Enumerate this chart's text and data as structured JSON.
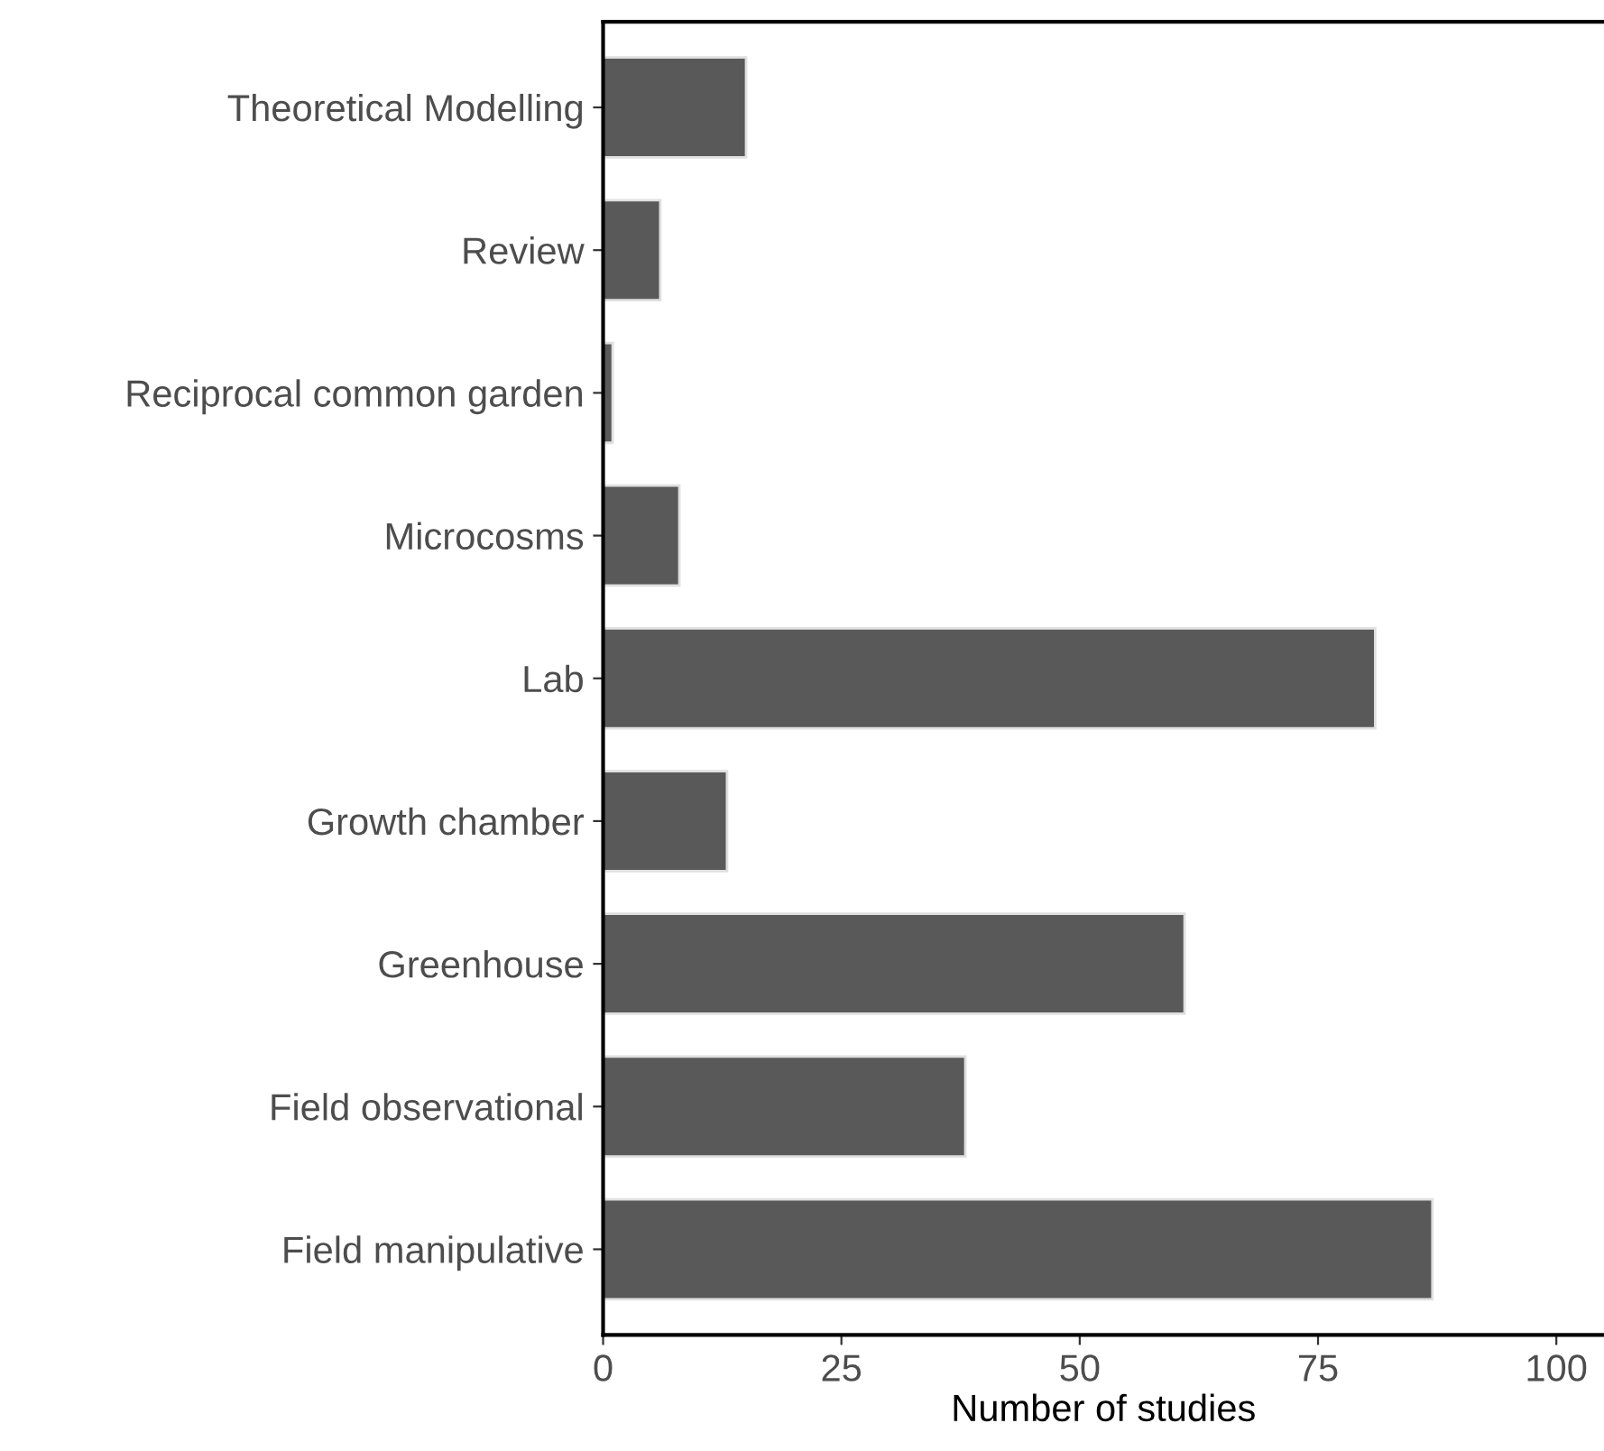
{
  "chart_data": {
    "type": "bar",
    "orientation": "horizontal",
    "xlabel": "Number of studies",
    "categories": [
      "Theoretical Modelling",
      "Review",
      "Reciprocal common garden",
      "Microcosms",
      "Lab",
      "Growth chamber",
      "Greenhouse",
      "Field observational",
      "Field manipulative"
    ],
    "values": [
      15,
      6,
      1,
      8,
      81,
      13,
      61,
      38,
      87
    ],
    "color": "#595959",
    "xlim": [
      0,
      105
    ],
    "xticks": [
      0,
      25,
      50,
      75,
      100
    ],
    "grid": false,
    "legend": false
  }
}
